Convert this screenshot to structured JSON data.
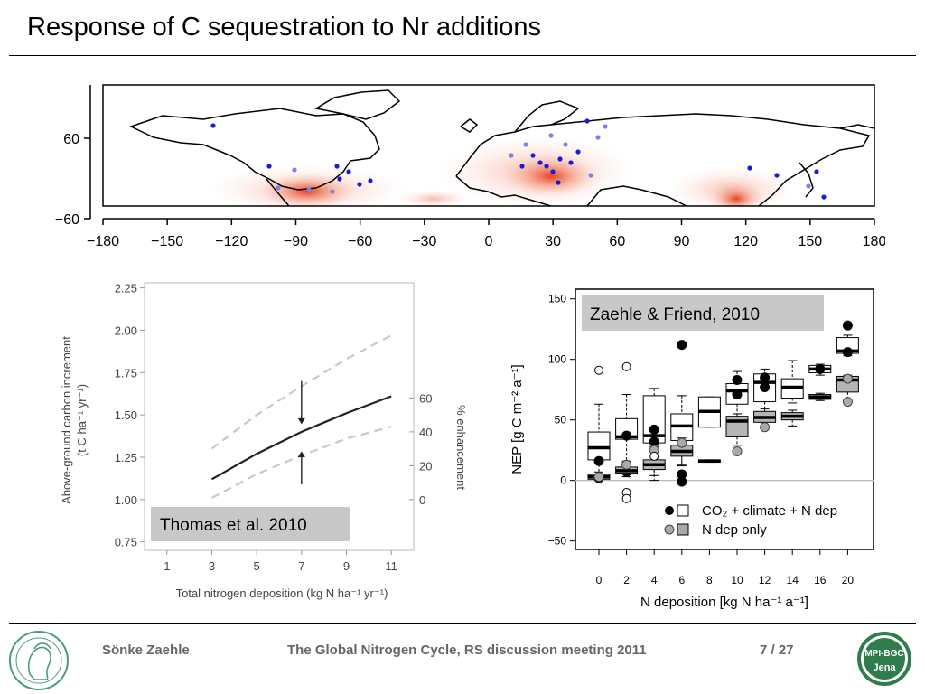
{
  "slide": {
    "title": "Response of C sequestration to Nr additions"
  },
  "footer": {
    "author": "Sönke Zaehle",
    "event": "The Global Nitrogen Cycle, RS discussion meeting 2011",
    "page": "7 / 27",
    "logo_text_top": "MPI-BGC",
    "logo_text_bottom": "Jena",
    "colors": {
      "footer_text": "#666666",
      "logo_green": "#2f7d4a",
      "seal_green": "#4d9a83"
    }
  },
  "map": {
    "x_ticks": [
      "−180",
      "−150",
      "−120",
      "−90",
      "−60",
      "−30",
      "0",
      "30",
      "60",
      "90",
      "120",
      "150",
      "180"
    ],
    "y_ticks": [
      "60",
      "−60"
    ],
    "colors": {
      "site_dot": "#1a1adb",
      "site_dot_light": "#8080e8",
      "hotspot": "#e63a1a"
    }
  },
  "chart_data": [
    {
      "type": "line",
      "xlabel": "Total nitrogen deposition (kg N ha⁻¹ yr⁻¹)",
      "ylabel_line1": "Above-ground carbon increment",
      "ylabel_line2": "(t C ha⁻¹ yr⁻¹)",
      "y2label": "% enhancement",
      "x_ticks": [
        1,
        3,
        5,
        7,
        9,
        11
      ],
      "y_ticks": [
        "0.75",
        "1.00",
        "1.25",
        "1.50",
        "1.75",
        "2.00",
        "2.25"
      ],
      "y2_ticks": [
        "0",
        "20",
        "40",
        "60"
      ],
      "xlim": [
        0,
        12
      ],
      "ylim": [
        0.7,
        2.28
      ],
      "annotation": "Thomas et al. 2010",
      "series": [
        {
          "style": "solid",
          "x": [
            3,
            5,
            7,
            9,
            11
          ],
          "y": [
            1.12,
            1.27,
            1.4,
            1.51,
            1.61
          ]
        },
        {
          "style": "dashed",
          "x": [
            3,
            5,
            7,
            9,
            11
          ],
          "y": [
            1.3,
            1.5,
            1.67,
            1.83,
            1.97
          ]
        },
        {
          "style": "dashed",
          "x": [
            3,
            5,
            7,
            9,
            11
          ],
          "y": [
            1.01,
            1.15,
            1.26,
            1.36,
            1.43
          ]
        }
      ]
    },
    {
      "type": "box",
      "xlabel": "N deposition [kg N ha⁻¹ a⁻¹]",
      "ylabel": "NEP [g C m⁻² a⁻¹]",
      "categories": [
        "0",
        "2",
        "4",
        "6",
        "8",
        "10",
        "12",
        "14",
        "16",
        "20"
      ],
      "y_ticks": [
        "−50",
        "0",
        "50",
        "100",
        "150"
      ],
      "ylim": [
        -57,
        158
      ],
      "annotation": "Zaehle & Friend, 2010",
      "legend": [
        "CO₂ + climate + N dep",
        "N dep only"
      ],
      "series": [
        {
          "name": "CO₂ + climate + N dep",
          "boxes": [
            {
              "q1": 17,
              "median": 27,
              "q3": 40,
              "lo": 3,
              "hi": 63
            },
            {
              "q1": 34,
              "median": 36,
              "q3": 51,
              "lo": 16,
              "hi": 71
            },
            {
              "q1": 31,
              "median": 37,
              "q3": 70,
              "lo": 0,
              "hi": 76
            },
            {
              "q1": 33,
              "median": 45,
              "q3": 55,
              "lo": 12,
              "hi": 70
            },
            {
              "q1": 44,
              "median": 57,
              "q3": 69,
              "lo": 44,
              "hi": 69
            },
            {
              "q1": 63,
              "median": 74,
              "q3": 80,
              "lo": 55,
              "hi": 90
            },
            {
              "q1": 65,
              "median": 81,
              "q3": 88,
              "lo": 51,
              "hi": 92
            },
            {
              "q1": 68,
              "median": 77,
              "q3": 84,
              "lo": 64,
              "hi": 99
            },
            {
              "q1": 89,
              "median": 92,
              "q3": 95,
              "lo": 87,
              "hi": 96
            },
            {
              "q1": 105,
              "median": 107,
              "q3": 118,
              "lo": 103,
              "hi": 120
            }
          ],
          "points": [
            [
              0,
              16
            ],
            [
              0,
              2
            ],
            [
              2,
              37
            ],
            [
              2,
              7
            ],
            [
              4,
              42
            ],
            [
              4,
              32
            ],
            [
              6,
              112
            ],
            [
              6,
              5
            ],
            [
              6,
              -1
            ],
            [
              10,
              83
            ],
            [
              10,
              71
            ],
            [
              12,
              85
            ],
            [
              12,
              77
            ],
            [
              16,
              92
            ],
            [
              20,
              128
            ],
            [
              20,
              106
            ]
          ],
          "open_points": [
            [
              0,
              91
            ],
            [
              2,
              94
            ]
          ]
        },
        {
          "name": "N dep only",
          "boxes": [
            {
              "q1": 1,
              "median": 3,
              "q3": 5,
              "lo": 0,
              "hi": 7
            },
            {
              "q1": 6,
              "median": 8,
              "q3": 11,
              "lo": 3,
              "hi": 15
            },
            {
              "q1": 9,
              "median": 13,
              "q3": 17,
              "lo": 4,
              "hi": 28
            },
            {
              "q1": 20,
              "median": 24,
              "q3": 29,
              "lo": 13,
              "hi": 35
            },
            {
              "q1": 15,
              "median": 16,
              "q3": 17,
              "lo": 15,
              "hi": 17
            },
            {
              "q1": 36,
              "median": 49,
              "q3": 53,
              "lo": 29,
              "hi": 55
            },
            {
              "q1": 48,
              "median": 52,
              "q3": 57,
              "lo": 44,
              "hi": 59
            },
            {
              "q1": 50,
              "median": 53,
              "q3": 56,
              "lo": 45,
              "hi": 58
            },
            {
              "q1": 67,
              "median": 69,
              "q3": 71,
              "lo": 66,
              "hi": 72
            },
            {
              "q1": 73,
              "median": 83,
              "q3": 86,
              "lo": 65,
              "hi": 87
            }
          ],
          "points": [
            [
              0,
              3
            ],
            [
              2,
              13
            ],
            [
              4,
              25
            ],
            [
              6,
              31
            ],
            [
              10,
              24
            ],
            [
              12,
              44
            ],
            [
              20,
              84
            ],
            [
              20,
              65
            ]
          ],
          "open_points": [
            [
              2,
              -10
            ],
            [
              2,
              -15
            ],
            [
              4,
              20
            ]
          ]
        }
      ]
    }
  ]
}
